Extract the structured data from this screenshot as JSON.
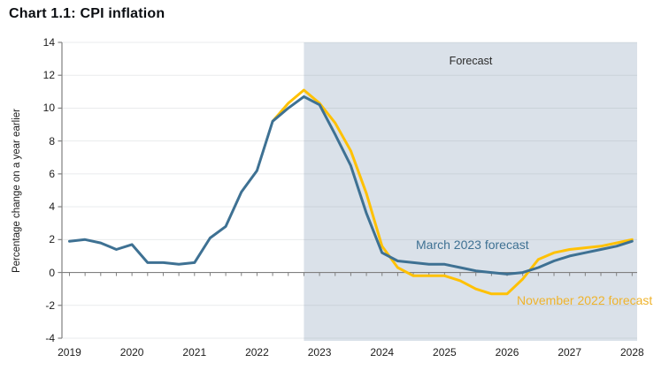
{
  "title": "Chart 1.1: CPI inflation",
  "colors": {
    "march_line": "#3e7193",
    "november_line": "#ffc104",
    "march_label": "#3e7193",
    "november_label": "#efb32c",
    "forecast_shade": "#dae1e9",
    "grid": "#7d8690",
    "axis": "#808080",
    "tick_text": "#1c1c1c",
    "title_text": "#0b0e12"
  },
  "chart_data": {
    "type": "line",
    "title": "Chart 1.1: CPI inflation",
    "xlabel": "",
    "ylabel": "Percentage change on a year earlier",
    "ylim": [
      -4,
      14
    ],
    "ytick_step": 2,
    "xlim": [
      2018.88,
      2028.08
    ],
    "xticks": [
      2019,
      2020,
      2021,
      2022,
      2023,
      2024,
      2025,
      2026,
      2027,
      2028
    ],
    "x_minor_tick_step": 0.25,
    "grid": true,
    "legend_position": "inline-labels-on-lines",
    "forecast_region": {
      "label": "Forecast",
      "start": 2022.75,
      "end": 2028.08
    },
    "series": [
      {
        "name": "November 2022 forecast",
        "color": "#ffc104",
        "x_start": 2022.25,
        "x_step": 0.25,
        "values": [
          9.2,
          10.3,
          11.1,
          10.3,
          9.1,
          7.4,
          4.8,
          1.6,
          0.3,
          -0.2,
          -0.2,
          -0.2,
          -0.5,
          -1.0,
          -1.3,
          -1.3,
          -0.4,
          0.8,
          1.2,
          1.4,
          1.5,
          1.6,
          1.8,
          2.0
        ]
      },
      {
        "name": "March 2023 forecast",
        "color": "#3e7193",
        "x_start": 2019.0,
        "x_step": 0.25,
        "values": [
          1.9,
          2.0,
          1.8,
          1.4,
          1.7,
          0.6,
          0.6,
          0.5,
          0.6,
          2.1,
          2.8,
          4.9,
          6.2,
          9.2,
          10.0,
          10.7,
          10.2,
          8.4,
          6.5,
          3.6,
          1.2,
          0.7,
          0.6,
          0.5,
          0.5,
          0.3,
          0.1,
          0.0,
          -0.1,
          0.0,
          0.3,
          0.7,
          1.0,
          1.2,
          1.4,
          1.6,
          1.9
        ]
      }
    ]
  }
}
